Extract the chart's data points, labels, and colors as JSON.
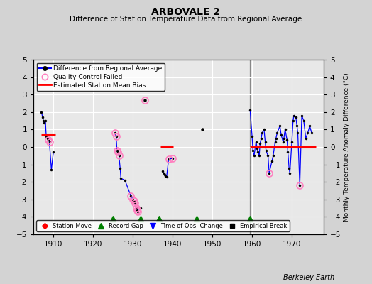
{
  "title": "ARBOVALE 2",
  "subtitle": "Difference of Station Temperature Data from Regional Average",
  "ylabel": "Monthly Temperature Anomaly Difference (°C)",
  "xlabel_bottom": "Berkeley Earth",
  "xlim": [
    1905,
    1978
  ],
  "ylim": [
    -5,
    5
  ],
  "bg_color": "#d3d3d3",
  "plot_bg_color": "#e8e8e8",
  "grid_color": "white",
  "vertical_line_x": 1959.5,
  "record_gaps": [
    1925.0,
    1932.0,
    1936.5,
    1946.0,
    1959.5
  ],
  "xticks": [
    1910,
    1920,
    1930,
    1940,
    1950,
    1960,
    1970
  ],
  "yticks": [
    -5,
    -4,
    -3,
    -2,
    -1,
    0,
    1,
    2,
    3,
    4,
    5
  ],
  "segment_groups": [
    [
      [
        1907.0,
        2.0
      ],
      [
        1907.3,
        1.7
      ],
      [
        1907.5,
        1.5
      ],
      [
        1907.7,
        1.4
      ],
      [
        1908.0,
        1.5
      ],
      [
        1908.2,
        0.6
      ],
      [
        1908.5,
        0.5
      ],
      [
        1908.8,
        0.4
      ],
      [
        1909.0,
        0.3
      ],
      [
        1909.5,
        -1.3
      ],
      [
        1910.0,
        -0.3
      ]
    ],
    [
      [
        1925.5,
        0.8
      ],
      [
        1925.8,
        0.6
      ],
      [
        1926.0,
        -0.2
      ],
      [
        1926.3,
        -0.3
      ],
      [
        1926.5,
        -0.5
      ],
      [
        1926.8,
        -1.2
      ],
      [
        1927.0,
        -1.8
      ],
      [
        1928.0,
        -1.9
      ],
      [
        1929.5,
        -2.8
      ],
      [
        1930.0,
        -3.0
      ],
      [
        1930.3,
        -3.1
      ],
      [
        1930.5,
        -3.2
      ],
      [
        1930.8,
        -3.5
      ],
      [
        1931.0,
        -3.6
      ],
      [
        1931.3,
        -3.7
      ],
      [
        1932.0,
        -3.5
      ]
    ],
    [
      [
        1933.0,
        2.7
      ]
    ],
    [
      [
        1937.5,
        -1.4
      ],
      [
        1937.8,
        -1.5
      ],
      [
        1938.0,
        -1.6
      ],
      [
        1938.2,
        -1.65
      ],
      [
        1938.5,
        -1.7
      ],
      [
        1939.0,
        -0.7
      ],
      [
        1940.0,
        -0.65
      ]
    ],
    [
      [
        1947.5,
        1.0
      ]
    ],
    [
      [
        1959.5,
        2.1
      ],
      [
        1960.0,
        0.6
      ],
      [
        1960.2,
        -0.2
      ],
      [
        1960.5,
        -0.5
      ],
      [
        1961.0,
        0.3
      ],
      [
        1961.3,
        -0.1
      ],
      [
        1961.5,
        -0.3
      ],
      [
        1961.8,
        -0.5
      ],
      [
        1962.0,
        0.2
      ],
      [
        1962.3,
        0.5
      ],
      [
        1962.5,
        0.8
      ],
      [
        1963.0,
        1.0
      ],
      [
        1963.3,
        0.3
      ],
      [
        1963.5,
        -0.2
      ],
      [
        1964.0,
        -0.5
      ],
      [
        1964.3,
        -1.5
      ],
      [
        1965.0,
        -0.8
      ],
      [
        1965.3,
        -0.5
      ],
      [
        1965.8,
        0.3
      ],
      [
        1966.0,
        0.5
      ],
      [
        1966.3,
        0.8
      ],
      [
        1967.0,
        1.2
      ],
      [
        1967.3,
        0.7
      ],
      [
        1967.8,
        0.3
      ],
      [
        1968.0,
        0.5
      ],
      [
        1968.3,
        1.0
      ],
      [
        1968.8,
        0.4
      ],
      [
        1969.0,
        -0.3
      ],
      [
        1969.3,
        -1.2
      ],
      [
        1969.5,
        -1.5
      ],
      [
        1970.0,
        0.3
      ],
      [
        1970.3,
        1.5
      ],
      [
        1970.5,
        1.8
      ],
      [
        1971.0,
        1.7
      ],
      [
        1971.3,
        1.2
      ],
      [
        1971.5,
        0.8
      ],
      [
        1972.0,
        -2.2
      ],
      [
        1972.5,
        1.8
      ],
      [
        1973.0,
        1.5
      ],
      [
        1973.5,
        0.5
      ],
      [
        1974.0,
        0.8
      ],
      [
        1974.5,
        1.2
      ],
      [
        1975.0,
        0.8
      ]
    ]
  ],
  "qc_failed": [
    [
      1908.8,
      0.4
    ],
    [
      1909.0,
      0.3
    ],
    [
      1925.5,
      0.8
    ],
    [
      1925.8,
      0.6
    ],
    [
      1926.0,
      -0.2
    ],
    [
      1926.3,
      -0.3
    ],
    [
      1926.5,
      -0.5
    ],
    [
      1929.5,
      -2.8
    ],
    [
      1930.0,
      -3.0
    ],
    [
      1930.3,
      -3.1
    ],
    [
      1930.5,
      -3.2
    ],
    [
      1930.8,
      -3.5
    ],
    [
      1931.0,
      -3.6
    ],
    [
      1931.3,
      -3.7
    ],
    [
      1933.0,
      2.7
    ],
    [
      1939.0,
      -0.7
    ],
    [
      1940.0,
      -0.65
    ],
    [
      1964.3,
      -1.5
    ],
    [
      1972.0,
      -2.2
    ]
  ],
  "bias_segs": [
    [
      [
        1907.0,
        1910.5
      ],
      0.7
    ],
    [
      [
        1937.0,
        1940.2
      ],
      0.05
    ],
    [
      [
        1959.5,
        1976.0
      ],
      0.0
    ]
  ]
}
